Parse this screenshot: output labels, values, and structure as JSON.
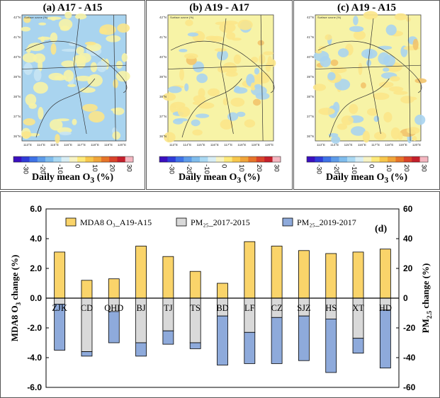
{
  "maps": [
    {
      "title": "(a) A17 - A15",
      "colorbar_label_main": "Daily mean O",
      "colorbar_label_sub": "3",
      "colorbar_label_unit": " (%)",
      "map_note": "Surface ozone   (%)"
    },
    {
      "title": "(b) A19 - A17",
      "colorbar_label_main": "Daily mean O",
      "colorbar_label_sub": "3",
      "colorbar_label_unit": " (%)",
      "map_note": "Surface ozone   (%)"
    },
    {
      "title": "(c) A19 - A15",
      "colorbar_label_main": "Daily mean O",
      "colorbar_label_sub": "3",
      "colorbar_label_unit": " (%)",
      "map_note": "Surface ozone   (%)"
    }
  ],
  "map_lat_labels": [
    "42°N",
    "41°N",
    "40°N",
    "39°N",
    "38°N",
    "37°N",
    "36°N"
  ],
  "map_lon_labels": [
    "113°E",
    "114°E",
    "115°E",
    "116°E",
    "117°E",
    "118°E",
    "119°E",
    "120°E"
  ],
  "colorbar": {
    "ticks": [
      "-30",
      "-20",
      "-10",
      "0",
      "10",
      "20",
      "30"
    ],
    "colors": [
      "#3b0fbf",
      "#2f3cd8",
      "#3e72e6",
      "#5d9be8",
      "#7fbcec",
      "#a9d8f2",
      "#d8edf4",
      "#f7f3c4",
      "#fde97a",
      "#f7c74c",
      "#f0a53a",
      "#e67429",
      "#d9442a",
      "#c41f2b",
      "#f4b6c0"
    ]
  },
  "chart_data": {
    "type": "bar",
    "panel_label": "(d)",
    "categories": [
      "ZJK",
      "CD",
      "QHD",
      "BJ",
      "TJ",
      "TS",
      "BD",
      "LF",
      "CZ",
      "SJZ",
      "HS",
      "XT",
      "HD"
    ],
    "series": [
      {
        "name": "MDA8 O₃_A19-A15",
        "axis": "left",
        "color": "#fad46a",
        "values": [
          3.1,
          1.2,
          1.3,
          3.5,
          2.8,
          1.8,
          1.0,
          3.8,
          3.5,
          3.2,
          3.0,
          3.1,
          3.3
        ]
      },
      {
        "name": "PM₂₅_2017-2015",
        "axis": "right",
        "color": "#d9d9d9",
        "values": [
          -4,
          -36,
          -9,
          -30,
          -22,
          -30,
          -12,
          -23,
          -13,
          -12,
          -14,
          -27,
          -8
        ]
      },
      {
        "name": "PM₂₅_2019-2017",
        "axis": "right",
        "color": "#8eaadb",
        "values": [
          -31,
          -3,
          -21,
          -9,
          -9,
          -4,
          -33,
          -21,
          -31,
          -30,
          -36,
          -10,
          -39
        ]
      }
    ],
    "legend_labels": [
      "MDA8 O₃_A19-A15",
      "PM₂₅_2017-2015",
      "PM₂₅_2019-2017"
    ],
    "ylabel_left_main": "MDA8 O",
    "ylabel_left_sub": "3",
    "ylabel_left_unit": " change (%)",
    "ylabel_right_main": "PM",
    "ylabel_right_sub": "2.5",
    "ylabel_right_unit": " change (%)",
    "ylim_left": [
      -6.0,
      6.0
    ],
    "ylim_right": [
      -60,
      60
    ],
    "yticks_left": [
      "6.0",
      "4.0",
      "2.0",
      "0.0",
      "-2.0",
      "-4.0",
      "-6.0"
    ],
    "yticks_right": [
      "60",
      "40",
      "20",
      "0",
      "-20",
      "-40",
      "-60"
    ],
    "grid": false,
    "legend_position": "top"
  }
}
